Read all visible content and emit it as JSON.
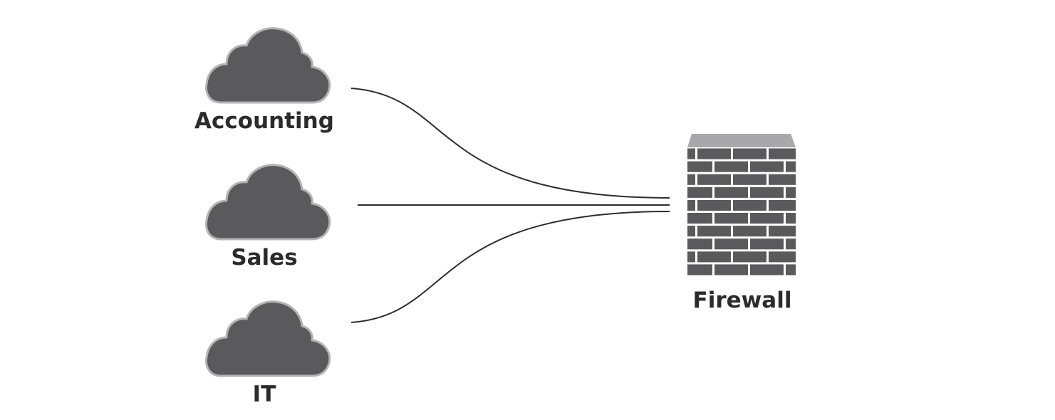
{
  "nodes": {
    "accounting": {
      "label": "Accounting",
      "icon": "cloud-icon"
    },
    "sales": {
      "label": "Sales",
      "icon": "cloud-icon"
    },
    "it": {
      "label": "IT",
      "icon": "cloud-icon"
    },
    "firewall": {
      "label": "Firewall",
      "icon": "brick-wall-icon"
    }
  },
  "edges": [
    {
      "from": "accounting",
      "to": "firewall"
    },
    {
      "from": "sales",
      "to": "firewall"
    },
    {
      "from": "it",
      "to": "firewall"
    }
  ],
  "colors": {
    "cloud_fill": "#5a5a5d",
    "cloud_outline": "#b4b4b6",
    "wall_brick": "#5a5a5d",
    "wall_mortar": "#ffffff",
    "wall_top": "#a8a8aa",
    "label_text": "#2b2b2c",
    "connector": "#2e2e2e"
  }
}
